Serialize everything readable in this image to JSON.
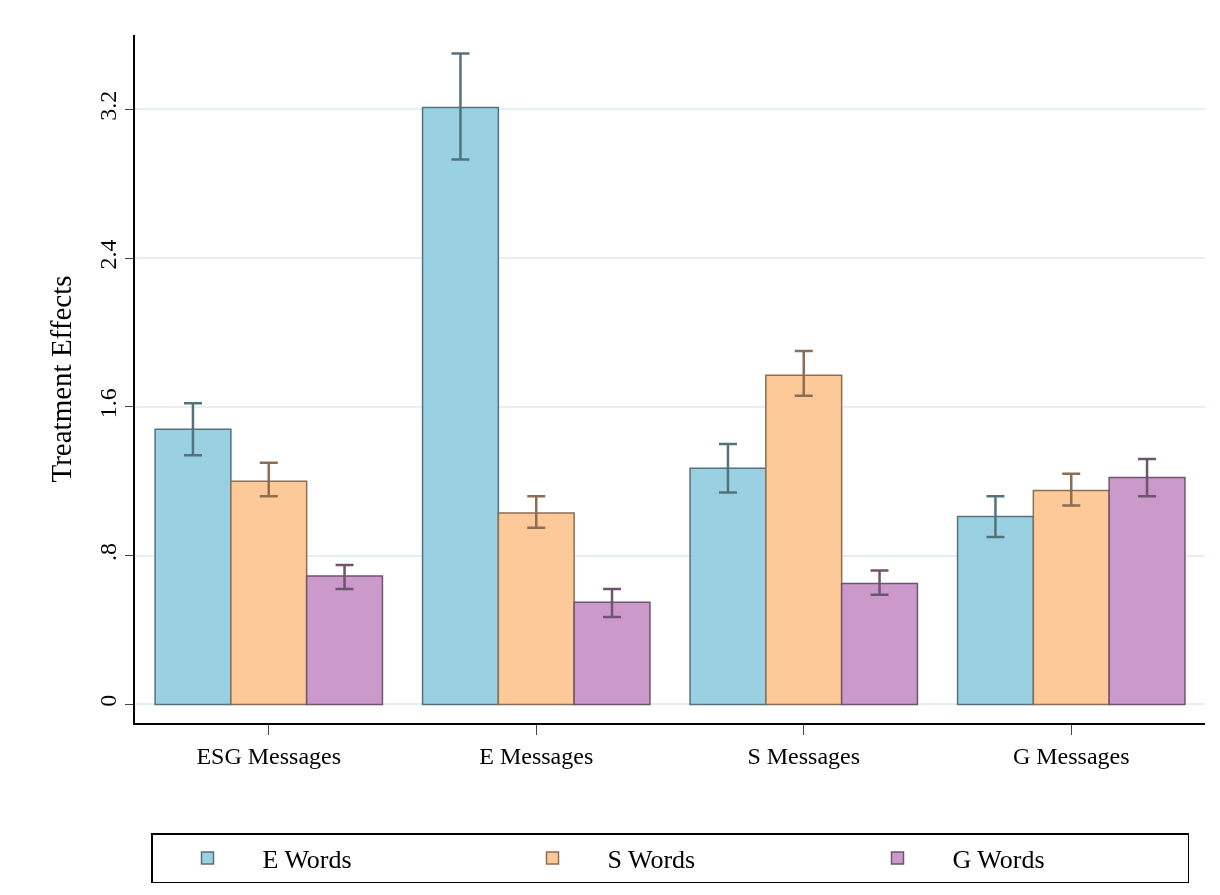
{
  "chart_data": {
    "type": "bar",
    "ylabel": "Treatment Effects",
    "categories": [
      "ESG Messages",
      "E Messages",
      "S Messages",
      "G Messages"
    ],
    "series": [
      {
        "name": "E Words",
        "color": "#99d1e3",
        "values": [
          1.48,
          3.21,
          1.27,
          1.01
        ],
        "errors": [
          [
            1.34,
            1.62
          ],
          [
            2.93,
            3.5
          ],
          [
            1.14,
            1.4
          ],
          [
            0.9,
            1.12
          ]
        ]
      },
      {
        "name": "S Words",
        "color": "#fdc998",
        "values": [
          1.2,
          1.03,
          1.77,
          1.15
        ],
        "errors": [
          [
            1.12,
            1.3
          ],
          [
            0.95,
            1.12
          ],
          [
            1.66,
            1.9
          ],
          [
            1.07,
            1.24
          ]
        ]
      },
      {
        "name": "G Words",
        "color": "#cb9acb",
        "values": [
          0.69,
          0.55,
          0.65,
          1.22
        ],
        "errors": [
          [
            0.62,
            0.75
          ],
          [
            0.47,
            0.62
          ],
          [
            0.59,
            0.72
          ],
          [
            1.12,
            1.32
          ]
        ]
      }
    ],
    "ylim": [
      -0.1,
      3.6
    ],
    "yticks": [
      0,
      {
        "value": 0.8,
        "label": ".8"
      },
      1.6,
      2.4,
      3.2
    ],
    "grid": "y",
    "legend": "bottom"
  }
}
